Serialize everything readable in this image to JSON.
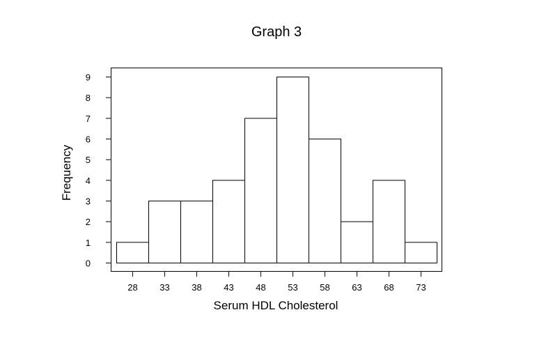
{
  "chart_data": {
    "type": "bar",
    "title": "Graph 3",
    "xlabel": "Serum HDL Cholesterol",
    "ylabel": "Frequency",
    "categories": [
      "28",
      "33",
      "38",
      "43",
      "48",
      "53",
      "58",
      "63",
      "68",
      "73"
    ],
    "values": [
      1,
      3,
      3,
      4,
      7,
      9,
      6,
      2,
      4,
      1
    ],
    "y_ticks": [
      "0",
      "1",
      "2",
      "3",
      "4",
      "5",
      "6",
      "7",
      "8",
      "9"
    ],
    "ylim": [
      0,
      9
    ],
    "grid": false,
    "legend": "none",
    "bar_fill": "#ffffff",
    "bar_stroke": "#000000"
  }
}
